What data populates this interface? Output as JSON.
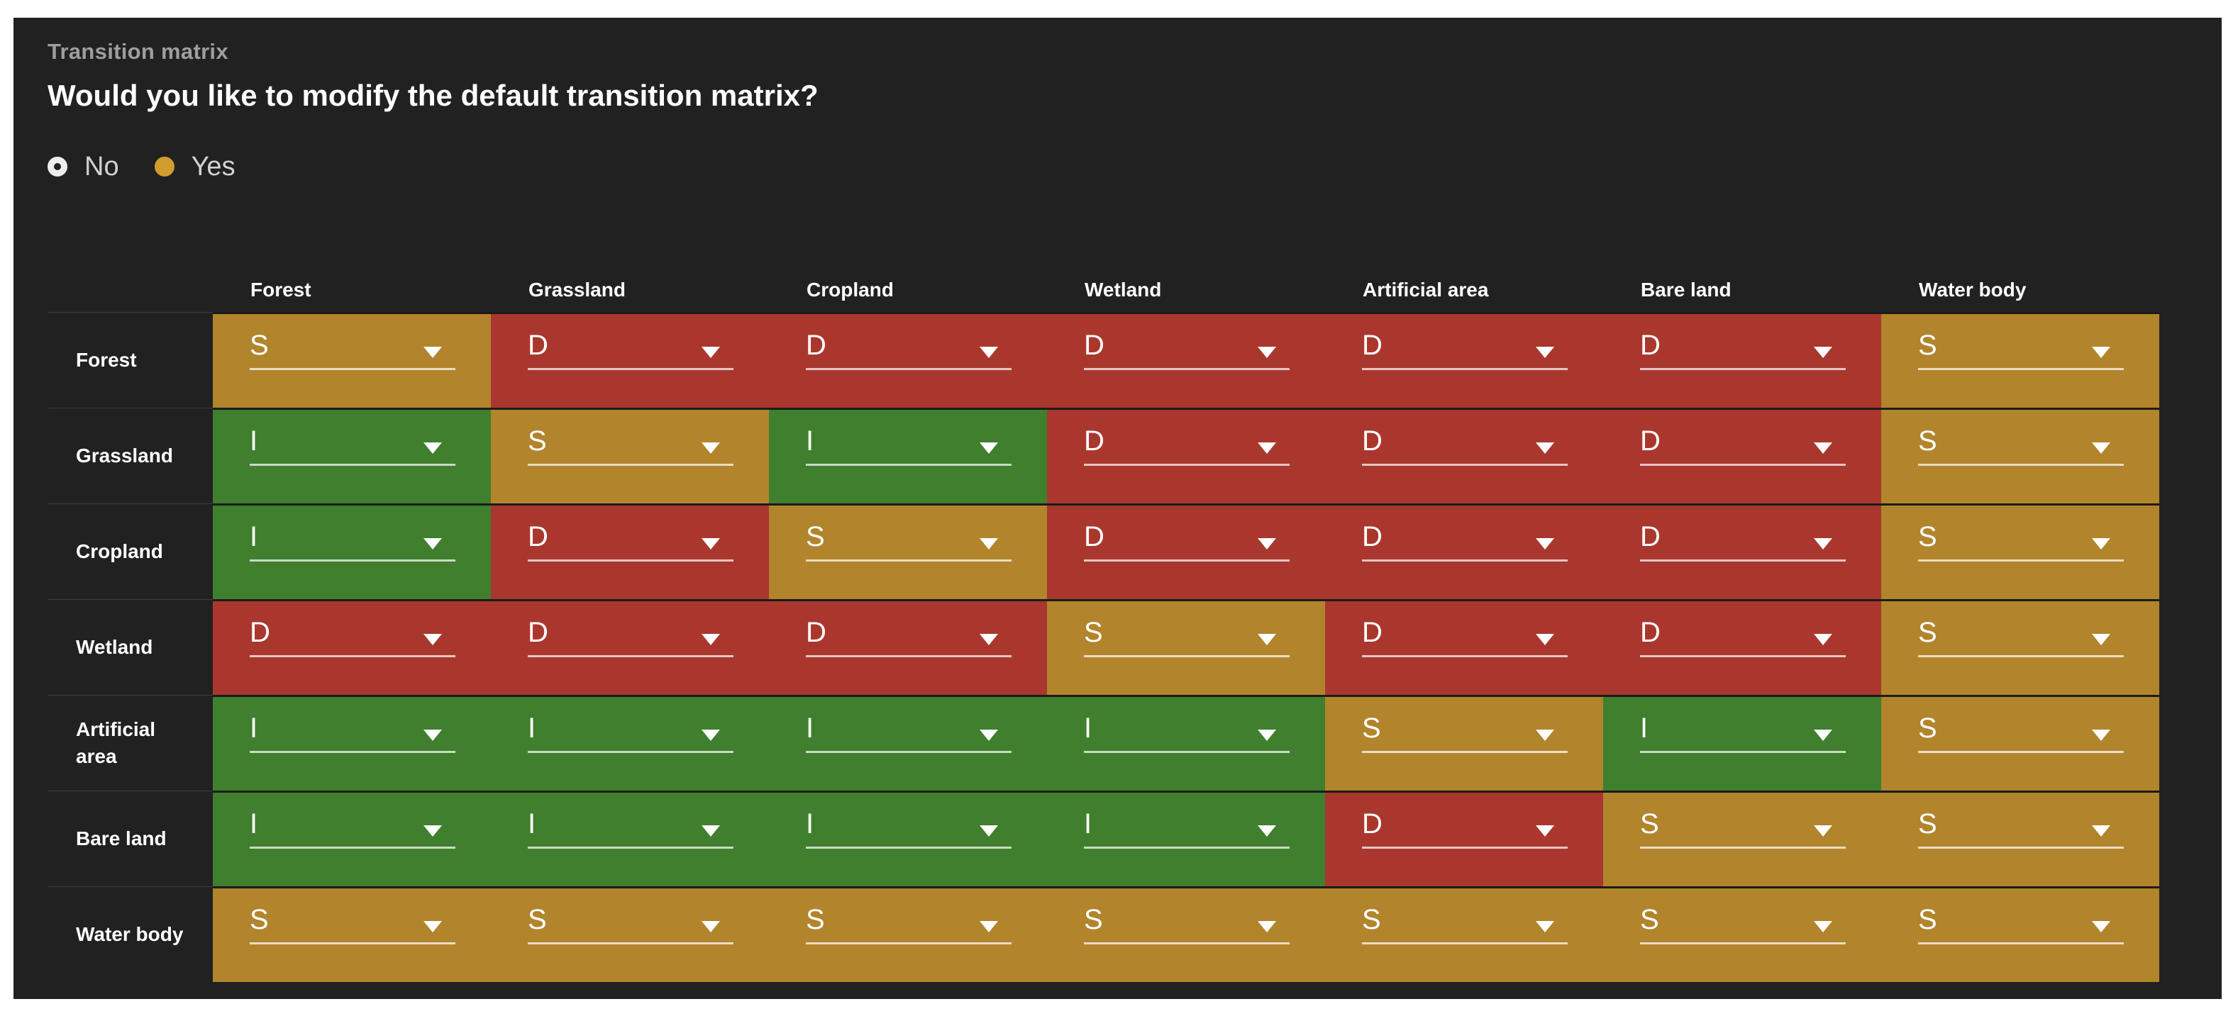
{
  "section_label": "Transition matrix",
  "question": "Would you like to modify the default transition matrix?",
  "radio": {
    "options": [
      {
        "label": "No",
        "selected": false
      },
      {
        "label": "Yes",
        "selected": true
      }
    ],
    "accent_color": "#d09d2e",
    "unselected_color": "#ededed"
  },
  "matrix": {
    "columns": [
      "Forest",
      "Grassland",
      "Cropland",
      "Wetland",
      "Artificial area",
      "Bare land",
      "Water body"
    ],
    "rows": [
      {
        "label": "Forest",
        "values": [
          "S",
          "D",
          "D",
          "D",
          "D",
          "D",
          "S"
        ]
      },
      {
        "label": "Grassland",
        "values": [
          "I",
          "S",
          "I",
          "D",
          "D",
          "D",
          "S"
        ]
      },
      {
        "label": "Cropland",
        "values": [
          "I",
          "D",
          "S",
          "D",
          "D",
          "D",
          "S"
        ]
      },
      {
        "label": "Wetland",
        "values": [
          "D",
          "D",
          "D",
          "S",
          "D",
          "D",
          "S"
        ]
      },
      {
        "label": "Artificial area",
        "values": [
          "I",
          "I",
          "I",
          "I",
          "S",
          "I",
          "S"
        ]
      },
      {
        "label": "Bare land",
        "values": [
          "I",
          "I",
          "I",
          "I",
          "D",
          "S",
          "S"
        ]
      },
      {
        "label": "Water body",
        "values": [
          "S",
          "S",
          "S",
          "S",
          "S",
          "S",
          "S"
        ]
      }
    ],
    "value_colors": {
      "S": "#b2842c",
      "D": "#aa372d",
      "I": "#3f7f2d"
    }
  },
  "colors": {
    "panel_bg": "#212121",
    "page_bg": "#ffffff",
    "cell_text": "#ffffff"
  },
  "icons": {
    "dropdown_caret": "▼",
    "radio_selected": "filled-circle-in-ring",
    "radio_unselected": "ring"
  }
}
